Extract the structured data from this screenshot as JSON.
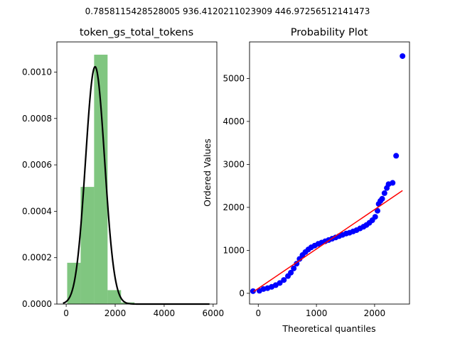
{
  "figure": {
    "suptitle": "0.7858115428528005 936.4120211023909 446.97256512141473"
  },
  "chart_data": [
    {
      "type": "bar",
      "title": "token_gs_total_tokens",
      "xlabel": "",
      "ylabel": "",
      "xlim": [
        -380,
        6150
      ],
      "ylim": [
        0,
        0.00113
      ],
      "xticks": [
        0,
        2000,
        4000,
        6000
      ],
      "yticks": [
        0.0,
        0.0002,
        0.0004,
        0.0006,
        0.0008,
        0.001
      ],
      "ytick_labels": [
        "0.0000",
        "0.0002",
        "0.0004",
        "0.0006",
        "0.0008",
        "0.0010"
      ],
      "grid": false,
      "histogram": {
        "color": "#2ca02c",
        "alpha": 0.6,
        "bins": [
          {
            "x0": 40,
            "x1": 590,
            "density": 0.000178
          },
          {
            "x0": 590,
            "x1": 1140,
            "density": 0.000505
          },
          {
            "x0": 1140,
            "x1": 1690,
            "density": 0.001075
          },
          {
            "x0": 1690,
            "x1": 2240,
            "density": 6e-05
          },
          {
            "x0": 2240,
            "x1": 2790,
            "density": 7e-06
          },
          {
            "x0": 2790,
            "x1": 3340,
            "density": 0.0
          },
          {
            "x0": 3340,
            "x1": 3890,
            "density": 0.0
          },
          {
            "x0": 3890,
            "x1": 4440,
            "density": 0.0
          },
          {
            "x0": 4440,
            "x1": 4990,
            "density": 0.0
          },
          {
            "x0": 4990,
            "x1": 5540,
            "density": 1.6e-06
          }
        ]
      },
      "fit_curve": {
        "color": "#000000",
        "distribution": "norm",
        "mean": 1180,
        "std": 390,
        "x_range": [
          -130,
          5850
        ]
      }
    },
    {
      "type": "scatter",
      "title": "Probability Plot",
      "xlabel": "Theoretical quantiles",
      "ylabel": "Ordered Values",
      "xlim": [
        -150,
        2600
      ],
      "ylim": [
        -250,
        5850
      ],
      "xticks": [
        0,
        1000,
        2000
      ],
      "yticks": [
        0,
        1000,
        2000,
        3000,
        4000,
        5000
      ],
      "grid": false,
      "points_color": "#0000ff",
      "line_color": "#ff0000",
      "fit_line": {
        "x": [
          -80,
          2480
        ],
        "y": [
          40,
          2390
        ]
      },
      "points": [
        [
          -90,
          50
        ],
        [
          20,
          60
        ],
        [
          90,
          100
        ],
        [
          160,
          120
        ],
        [
          230,
          150
        ],
        [
          300,
          190
        ],
        [
          370,
          240
        ],
        [
          440,
          310
        ],
        [
          510,
          400
        ],
        [
          560,
          480
        ],
        [
          610,
          580
        ],
        [
          660,
          690
        ],
        [
          710,
          800
        ],
        [
          760,
          890
        ],
        [
          810,
          960
        ],
        [
          860,
          1020
        ],
        [
          910,
          1070
        ],
        [
          970,
          1110
        ],
        [
          1030,
          1150
        ],
        [
          1090,
          1180
        ],
        [
          1150,
          1210
        ],
        [
          1210,
          1240
        ],
        [
          1270,
          1270
        ],
        [
          1330,
          1300
        ],
        [
          1390,
          1330
        ],
        [
          1450,
          1360
        ],
        [
          1510,
          1390
        ],
        [
          1570,
          1410
        ],
        [
          1630,
          1440
        ],
        [
          1690,
          1470
        ],
        [
          1750,
          1510
        ],
        [
          1810,
          1550
        ],
        [
          1860,
          1590
        ],
        [
          1910,
          1640
        ],
        [
          1960,
          1700
        ],
        [
          2010,
          1780
        ],
        [
          2050,
          1920
        ],
        [
          2070,
          2080
        ],
        [
          2100,
          2150
        ],
        [
          2130,
          2200
        ],
        [
          2170,
          2330
        ],
        [
          2210,
          2450
        ],
        [
          2240,
          2540
        ],
        [
          2310,
          2570
        ],
        [
          2370,
          3200
        ],
        [
          2480,
          5520
        ]
      ]
    }
  ]
}
